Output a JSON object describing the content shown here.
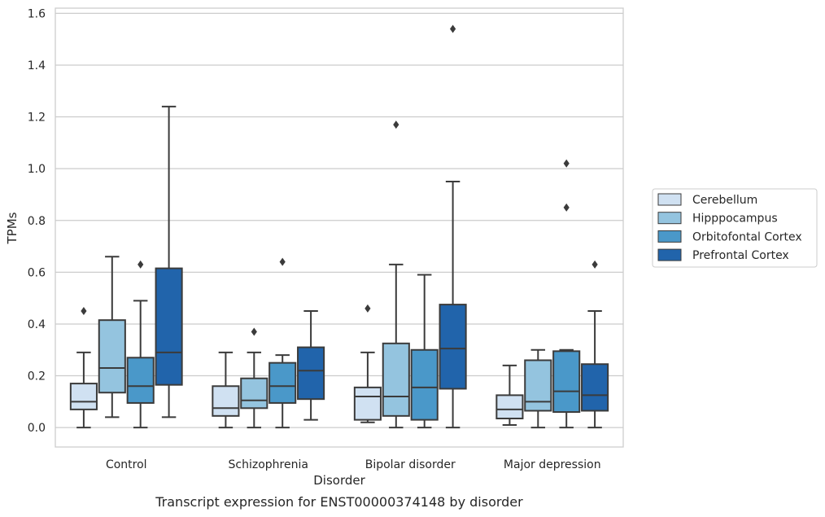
{
  "chart_data": {
    "type": "box",
    "caption": "Transcript expression for ENST00000374148 by disorder",
    "xlabel": "Disorder",
    "ylabel": "TPMs",
    "ylim": [
      -0.075,
      1.62
    ],
    "yticks": [
      0.0,
      0.2,
      0.4,
      0.6,
      0.8,
      1.0,
      1.2,
      1.4,
      1.6
    ],
    "ytick_labels": [
      "0.0",
      "0.2",
      "0.4",
      "0.6",
      "0.8",
      "1.0",
      "1.2",
      "1.4",
      "1.6"
    ],
    "grid": "horizontal",
    "legend_position": "right",
    "categories": [
      "Control",
      "Schizophrenia",
      "Bipolar disorder",
      "Major depression"
    ],
    "series": [
      {
        "name": "Cerebellum",
        "color": "#d0e1f2",
        "boxes": [
          {
            "min": 0.0,
            "q1": 0.07,
            "median": 0.1,
            "q3": 0.17,
            "max": 0.29,
            "outliers": [
              0.45
            ]
          },
          {
            "min": 0.0,
            "q1": 0.045,
            "median": 0.075,
            "q3": 0.16,
            "max": 0.29,
            "outliers": []
          },
          {
            "min": 0.02,
            "q1": 0.03,
            "median": 0.12,
            "q3": 0.155,
            "max": 0.29,
            "outliers": [
              0.46
            ]
          },
          {
            "min": 0.01,
            "q1": 0.035,
            "median": 0.07,
            "q3": 0.125,
            "max": 0.24,
            "outliers": []
          }
        ]
      },
      {
        "name": "Hipppocampus",
        "color": "#94c4df",
        "boxes": [
          {
            "min": 0.04,
            "q1": 0.135,
            "median": 0.23,
            "q3": 0.415,
            "max": 0.66,
            "outliers": []
          },
          {
            "min": 0.0,
            "q1": 0.075,
            "median": 0.105,
            "q3": 0.19,
            "max": 0.29,
            "outliers": [
              0.37
            ]
          },
          {
            "min": 0.0,
            "q1": 0.045,
            "median": 0.12,
            "q3": 0.325,
            "max": 0.63,
            "outliers": [
              1.17
            ]
          },
          {
            "min": 0.0,
            "q1": 0.065,
            "median": 0.1,
            "q3": 0.26,
            "max": 0.3,
            "outliers": []
          }
        ]
      },
      {
        "name": "Orbitofontal Cortex",
        "color": "#4a98c9",
        "boxes": [
          {
            "min": 0.0,
            "q1": 0.095,
            "median": 0.16,
            "q3": 0.27,
            "max": 0.49,
            "outliers": [
              0.63
            ]
          },
          {
            "min": 0.0,
            "q1": 0.095,
            "median": 0.16,
            "q3": 0.25,
            "max": 0.28,
            "outliers": [
              0.64
            ]
          },
          {
            "min": 0.0,
            "q1": 0.03,
            "median": 0.155,
            "q3": 0.3,
            "max": 0.59,
            "outliers": []
          },
          {
            "min": 0.0,
            "q1": 0.06,
            "median": 0.14,
            "q3": 0.295,
            "max": 0.3,
            "outliers": [
              0.85,
              1.02
            ]
          }
        ]
      },
      {
        "name": "Prefrontal Cortex",
        "color": "#2164ab",
        "boxes": [
          {
            "min": 0.04,
            "q1": 0.165,
            "median": 0.29,
            "q3": 0.615,
            "max": 1.24,
            "outliers": []
          },
          {
            "min": 0.03,
            "q1": 0.11,
            "median": 0.22,
            "q3": 0.31,
            "max": 0.45,
            "outliers": []
          },
          {
            "min": 0.0,
            "q1": 0.15,
            "median": 0.305,
            "q3": 0.475,
            "max": 0.95,
            "outliers": [
              1.54
            ]
          },
          {
            "min": 0.0,
            "q1": 0.065,
            "median": 0.125,
            "q3": 0.245,
            "max": 0.45,
            "outliers": [
              0.63
            ]
          }
        ]
      }
    ]
  }
}
